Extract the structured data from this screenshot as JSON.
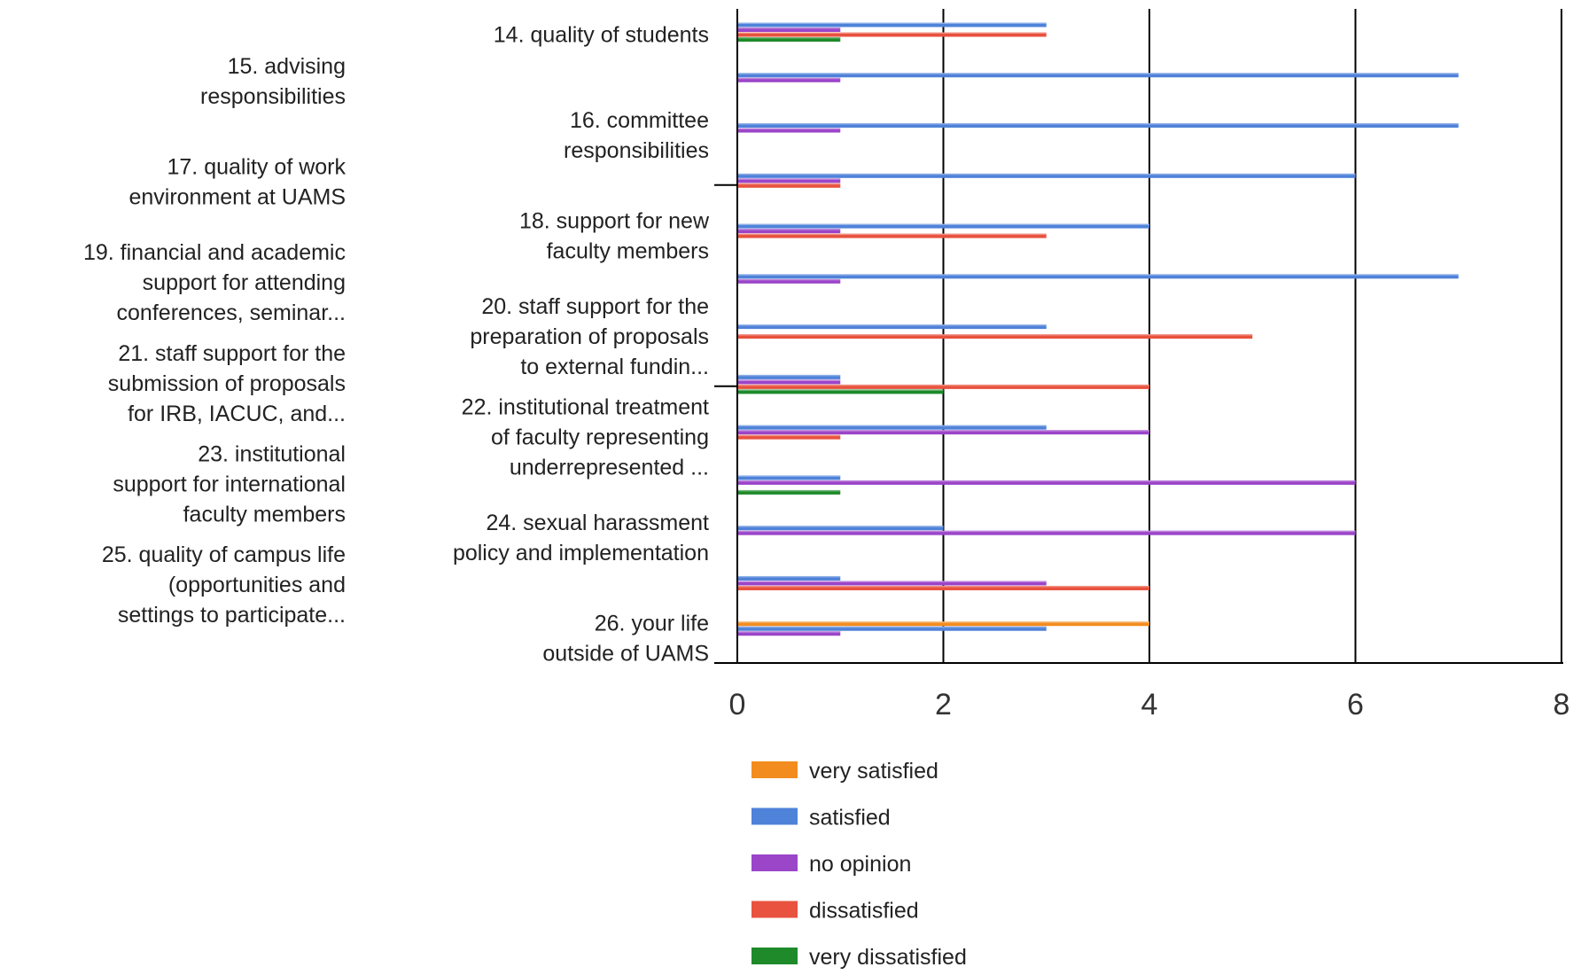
{
  "chart_data": {
    "type": "bar",
    "orientation": "horizontal",
    "categories": [
      "14. quality of students",
      "15. advising responsibilities",
      "16. committee responsibilities",
      "17. quality of work environment at UAMS",
      "18. support for new faculty members",
      "19. financial and academic support for attending conferences, seminar...",
      "20. staff support for the preparation of proposals to external fundin...",
      "21. staff support for the submission of proposals for IRB, IACUC, and...",
      "22. institutional treatment of faculty representing underrepresented ...",
      "23. institutional support for international faculty members",
      "24. sexual harassment policy and implementation",
      "25. quality of campus life (opportunities and settings to participate...",
      "26. your life outside of UAMS"
    ],
    "category_lines": [
      [
        "14. quality of students"
      ],
      [
        "15. advising",
        "responsibilities"
      ],
      [
        "16. committee",
        "responsibilities"
      ],
      [
        "17. quality of work",
        "environment at UAMS"
      ],
      [
        "18. support for new",
        "faculty members"
      ],
      [
        "19. financial and academic",
        "support for attending",
        "conferences, seminar..."
      ],
      [
        "20. staff support for the",
        "preparation of proposals",
        "to external fundin..."
      ],
      [
        "21. staff support for the",
        "submission of proposals",
        "for IRB, IACUC, and..."
      ],
      [
        "22. institutional treatment",
        "of faculty representing",
        "underrepresented ..."
      ],
      [
        "23. institutional",
        "support for international",
        "faculty members"
      ],
      [
        "24. sexual harassment",
        "policy and implementation"
      ],
      [
        "25. quality of campus life",
        "(opportunities and",
        "settings to participate..."
      ],
      [
        "26. your life",
        "outside of UAMS"
      ]
    ],
    "series": [
      {
        "name": "very satisfied",
        "color": "#f28c1e",
        "values": [
          0,
          0,
          0,
          0,
          0,
          0,
          0,
          0,
          0,
          0,
          0,
          0,
          4
        ]
      },
      {
        "name": "satisfied",
        "color": "#4f82d9",
        "values": [
          3,
          7,
          7,
          6,
          4,
          7,
          3,
          1,
          3,
          1,
          2,
          1,
          3
        ]
      },
      {
        "name": "no opinion",
        "color": "#9b45c9",
        "values": [
          1,
          1,
          1,
          1,
          1,
          1,
          0,
          1,
          4,
          6,
          6,
          3,
          1
        ]
      },
      {
        "name": "dissatisfied",
        "color": "#e8523e",
        "values": [
          3,
          0,
          0,
          1,
          3,
          0,
          5,
          4,
          1,
          0,
          0,
          4,
          0
        ]
      },
      {
        "name": "very dissatisfied",
        "color": "#1e8a2a",
        "values": [
          1,
          0,
          0,
          0,
          0,
          0,
          0,
          2,
          0,
          1,
          0,
          0,
          0
        ]
      }
    ],
    "xlim": [
      0,
      8
    ],
    "xticks": [
      "0",
      "2",
      "4",
      "6",
      "8"
    ],
    "grid": true,
    "legend_position": "bottom"
  }
}
